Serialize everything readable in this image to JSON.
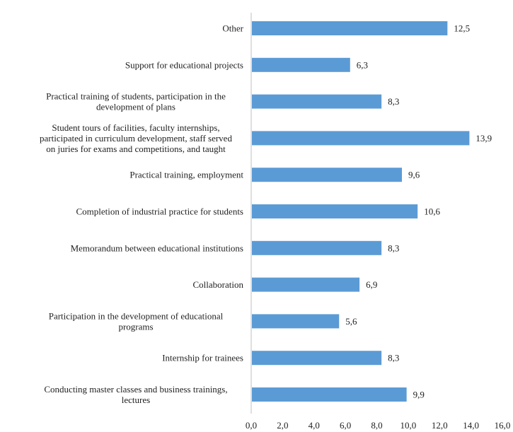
{
  "chart_data": {
    "type": "bar",
    "orientation": "horizontal",
    "categories": [
      [
        "Other"
      ],
      [
        "Support for educational projects"
      ],
      [
        "Practical training of students, participation in the",
        "development of plans"
      ],
      [
        "Student tours of facilities, faculty internships,",
        "participated in curriculum development, staff served",
        "on juries for exams and competitions, and taught"
      ],
      [
        "Practical training, employment"
      ],
      [
        "Completion of industrial practice for students"
      ],
      [
        "Memorandum between educational institutions"
      ],
      [
        "Collaboration"
      ],
      [
        "Participation in the development of educational",
        "programs"
      ],
      [
        "Internship for trainees"
      ],
      [
        "Conducting master classes and business trainings,",
        "lectures"
      ]
    ],
    "values": [
      12.5,
      6.3,
      8.3,
      13.9,
      9.6,
      10.6,
      8.3,
      6.9,
      5.6,
      8.3,
      9.9
    ],
    "value_labels": [
      "12,5",
      "6,3",
      "8,3",
      "13,9",
      "9,6",
      "10,6",
      "8,3",
      "6,9",
      "5,6",
      "8,3",
      "9,9"
    ],
    "xlim": [
      0,
      16
    ],
    "xticks": [
      0,
      2,
      4,
      6,
      8,
      10,
      12,
      14,
      16
    ],
    "xtick_labels": [
      "0,0",
      "2,0",
      "4,0",
      "6,0",
      "8,0",
      "10,0",
      "12,0",
      "14,0",
      "16,0"
    ],
    "title": "",
    "xlabel": "",
    "ylabel": "",
    "grid": false,
    "bar_color": "#5b9bd5"
  }
}
